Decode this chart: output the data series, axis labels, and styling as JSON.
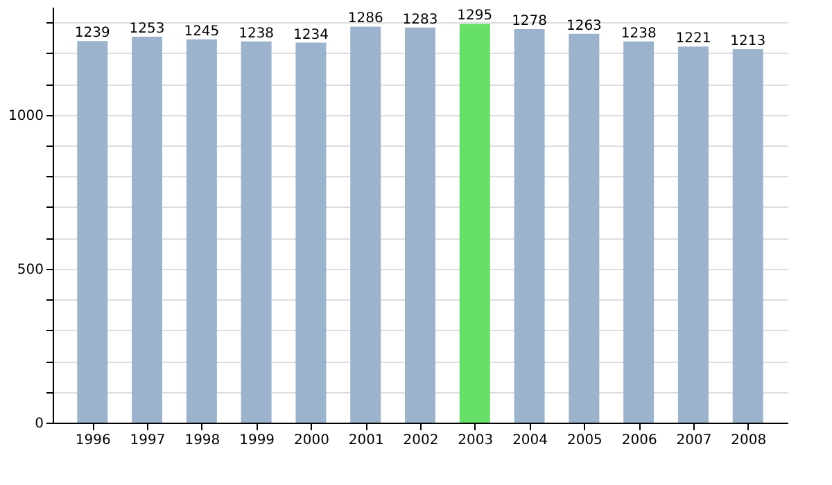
{
  "chart_data": {
    "type": "bar",
    "categories": [
      "1996",
      "1997",
      "1998",
      "1999",
      "2000",
      "2001",
      "2002",
      "2003",
      "2004",
      "2005",
      "2006",
      "2007",
      "2008"
    ],
    "values": [
      1239,
      1253,
      1245,
      1238,
      1234,
      1286,
      1283,
      1295,
      1278,
      1263,
      1238,
      1221,
      1213
    ],
    "colors": [
      "#9bb3cc",
      "#9bb3cc",
      "#9bb3cc",
      "#9bb3cc",
      "#9bb3cc",
      "#9bb3cc",
      "#9bb3cc",
      "#66e066",
      "#9bb3cc",
      "#9bb3cc",
      "#9bb3cc",
      "#9bb3cc",
      "#9bb3cc"
    ],
    "ylim": [
      0,
      1350
    ],
    "yticks": [
      0,
      {
        "value": 100,
        "label": null
      },
      {
        "value": 200,
        "label": null
      },
      {
        "value": 300,
        "label": null
      },
      {
        "value": 400,
        "label": null
      },
      500,
      {
        "value": 600,
        "label": null
      },
      {
        "value": 700,
        "label": null
      },
      {
        "value": 800,
        "label": null
      },
      {
        "value": 900,
        "label": null
      },
      1000,
      {
        "value": 1100,
        "label": null
      },
      {
        "value": 1200,
        "label": null
      },
      {
        "value": 1300,
        "label": null
      }
    ],
    "grid": true,
    "data_labels": true
  }
}
